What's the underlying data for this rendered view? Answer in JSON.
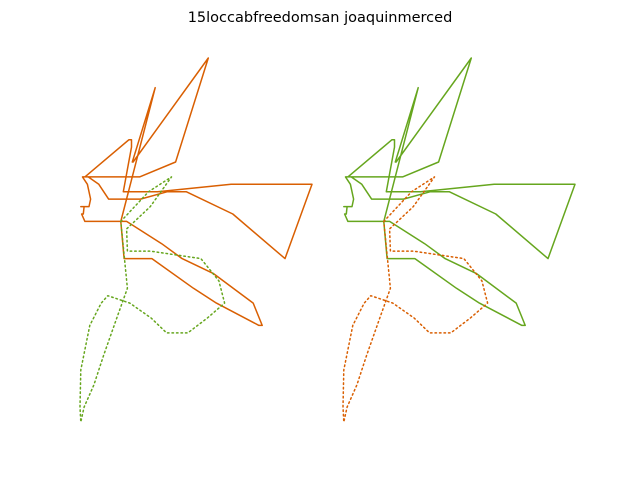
{
  "chart_data": {
    "type": "line",
    "title": "15loccabfreedomsan joaquinmerced",
    "axes_visible": false,
    "grid": false,
    "legend": "none",
    "colors": {
      "orange": "#d95f02",
      "green": "#66a61e"
    },
    "panels": [
      {
        "id": "left",
        "series": [
          {
            "color": "#d95f02",
            "style": "solid",
            "points": [
              [
                0.5,
                4.55
              ],
              [
                0.71,
                4.64
              ],
              [
                0.92,
                4.73
              ],
              [
                0.64,
                4.63
              ],
              [
                0.65,
                4.63
              ],
              [
                1.57,
                4.77
              ],
              [
                1.17,
                4.63
              ],
              [
                0.73,
                4.61
              ],
              [
                0.07,
                4.61
              ],
              [
                0.06,
                4.61
              ],
              [
                0.6,
                4.66
              ],
              [
                0.63,
                4.66
              ],
              [
                0.63,
                4.65
              ],
              [
                0.58,
                4.62
              ],
              [
                0.53,
                4.59
              ],
              [
                0.74,
                4.59
              ],
              [
                0.95,
                4.59
              ],
              [
                1.85,
                4.6
              ],
              [
                2.84,
                4.6
              ],
              [
                2.51,
                4.5
              ],
              [
                1.87,
                4.56
              ],
              [
                1.3,
                4.59
              ],
              [
                1.07,
                4.59
              ],
              [
                0.74,
                4.58
              ],
              [
                0.55,
                4.58
              ],
              [
                0.39,
                4.58
              ],
              [
                0.35,
                4.58
              ],
              [
                0.23,
                4.6
              ],
              [
                0.1,
                4.61
              ],
              [
                0.03,
                4.61
              ],
              [
                0.09,
                4.6
              ],
              [
                0.13,
                4.58
              ],
              [
                0.11,
                4.57
              ],
              [
                0.05,
                4.57
              ],
              [
                0.01,
                4.57
              ],
              [
                0.05,
                4.57
              ],
              [
                0.04,
                4.56
              ],
              [
                0.02,
                4.56
              ],
              [
                0.06,
                4.55
              ],
              [
                0.1,
                4.55
              ],
              [
                0.08,
                4.55
              ],
              [
                0.3,
                4.55
              ],
              [
                0.51,
                4.55
              ],
              [
                0.57,
                4.55
              ],
              [
                1.0,
                4.52
              ],
              [
                1.25,
                4.5
              ],
              [
                1.63,
                4.48
              ],
              [
                2.12,
                4.44
              ],
              [
                2.23,
                4.41
              ],
              [
                2.19,
                4.41
              ],
              [
                1.67,
                4.44
              ],
              [
                1.39,
                4.46
              ],
              [
                0.88,
                4.5
              ],
              [
                0.54,
                4.5
              ],
              [
                0.5,
                4.55
              ]
            ]
          },
          {
            "color": "#66a61e",
            "style": "dotted",
            "points": [
              [
                0.5,
                4.55
              ],
              [
                0.84,
                4.59
              ],
              [
                1.12,
                4.61
              ],
              [
                0.86,
                4.57
              ],
              [
                0.57,
                4.54
              ],
              [
                0.58,
                4.51
              ],
              [
                0.86,
                4.51
              ],
              [
                1.48,
                4.5
              ],
              [
                1.7,
                4.47
              ],
              [
                1.77,
                4.44
              ],
              [
                1.56,
                4.42
              ],
              [
                1.32,
                4.4
              ],
              [
                1.06,
                4.4
              ],
              [
                0.87,
                4.42
              ],
              [
                0.61,
                4.44
              ],
              [
                0.34,
                4.45
              ],
              [
                0.26,
                4.44
              ],
              [
                0.12,
                4.41
              ],
              [
                0.01,
                4.35
              ],
              [
                0.0,
                4.3
              ],
              [
                0.01,
                4.28
              ],
              [
                0.05,
                4.3
              ],
              [
                0.17,
                4.33
              ],
              [
                0.29,
                4.37
              ],
              [
                0.45,
                4.42
              ],
              [
                0.58,
                4.46
              ],
              [
                0.5,
                4.55
              ]
            ]
          }
        ]
      },
      {
        "id": "right",
        "series": [
          {
            "color": "#66a61e",
            "style": "solid",
            "points": [
              [
                0.5,
                4.55
              ],
              [
                0.71,
                4.64
              ],
              [
                0.92,
                4.73
              ],
              [
                0.64,
                4.63
              ],
              [
                0.65,
                4.63
              ],
              [
                1.57,
                4.77
              ],
              [
                1.17,
                4.63
              ],
              [
                0.73,
                4.61
              ],
              [
                0.07,
                4.61
              ],
              [
                0.06,
                4.61
              ],
              [
                0.6,
                4.66
              ],
              [
                0.63,
                4.66
              ],
              [
                0.63,
                4.65
              ],
              [
                0.58,
                4.62
              ],
              [
                0.53,
                4.59
              ],
              [
                0.74,
                4.59
              ],
              [
                0.95,
                4.59
              ],
              [
                1.85,
                4.6
              ],
              [
                2.84,
                4.6
              ],
              [
                2.51,
                4.5
              ],
              [
                1.87,
                4.56
              ],
              [
                1.3,
                4.59
              ],
              [
                1.07,
                4.59
              ],
              [
                0.74,
                4.58
              ],
              [
                0.55,
                4.58
              ],
              [
                0.39,
                4.58
              ],
              [
                0.35,
                4.58
              ],
              [
                0.23,
                4.6
              ],
              [
                0.1,
                4.61
              ],
              [
                0.03,
                4.61
              ],
              [
                0.09,
                4.6
              ],
              [
                0.13,
                4.58
              ],
              [
                0.11,
                4.57
              ],
              [
                0.05,
                4.57
              ],
              [
                0.01,
                4.57
              ],
              [
                0.05,
                4.57
              ],
              [
                0.04,
                4.56
              ],
              [
                0.02,
                4.56
              ],
              [
                0.06,
                4.55
              ],
              [
                0.1,
                4.55
              ],
              [
                0.08,
                4.55
              ],
              [
                0.3,
                4.55
              ],
              [
                0.51,
                4.55
              ],
              [
                0.57,
                4.55
              ],
              [
                1.0,
                4.52
              ],
              [
                1.25,
                4.5
              ],
              [
                1.63,
                4.48
              ],
              [
                2.12,
                4.44
              ],
              [
                2.23,
                4.41
              ],
              [
                2.19,
                4.41
              ],
              [
                1.67,
                4.44
              ],
              [
                1.39,
                4.46
              ],
              [
                0.88,
                4.5
              ],
              [
                0.54,
                4.5
              ],
              [
                0.5,
                4.55
              ]
            ]
          },
          {
            "color": "#d95f02",
            "style": "dotted",
            "points": [
              [
                0.5,
                4.55
              ],
              [
                0.84,
                4.59
              ],
              [
                1.12,
                4.61
              ],
              [
                0.86,
                4.57
              ],
              [
                0.57,
                4.54
              ],
              [
                0.58,
                4.51
              ],
              [
                0.86,
                4.51
              ],
              [
                1.48,
                4.5
              ],
              [
                1.7,
                4.47
              ],
              [
                1.77,
                4.44
              ],
              [
                1.56,
                4.42
              ],
              [
                1.32,
                4.4
              ],
              [
                1.06,
                4.4
              ],
              [
                0.87,
                4.42
              ],
              [
                0.61,
                4.44
              ],
              [
                0.34,
                4.45
              ],
              [
                0.26,
                4.44
              ],
              [
                0.12,
                4.41
              ],
              [
                0.01,
                4.35
              ],
              [
                0.0,
                4.3
              ],
              [
                0.01,
                4.28
              ],
              [
                0.05,
                4.3
              ],
              [
                0.17,
                4.33
              ],
              [
                0.29,
                4.37
              ],
              [
                0.45,
                4.42
              ],
              [
                0.58,
                4.46
              ],
              [
                0.5,
                4.55
              ]
            ]
          }
        ]
      }
    ]
  }
}
